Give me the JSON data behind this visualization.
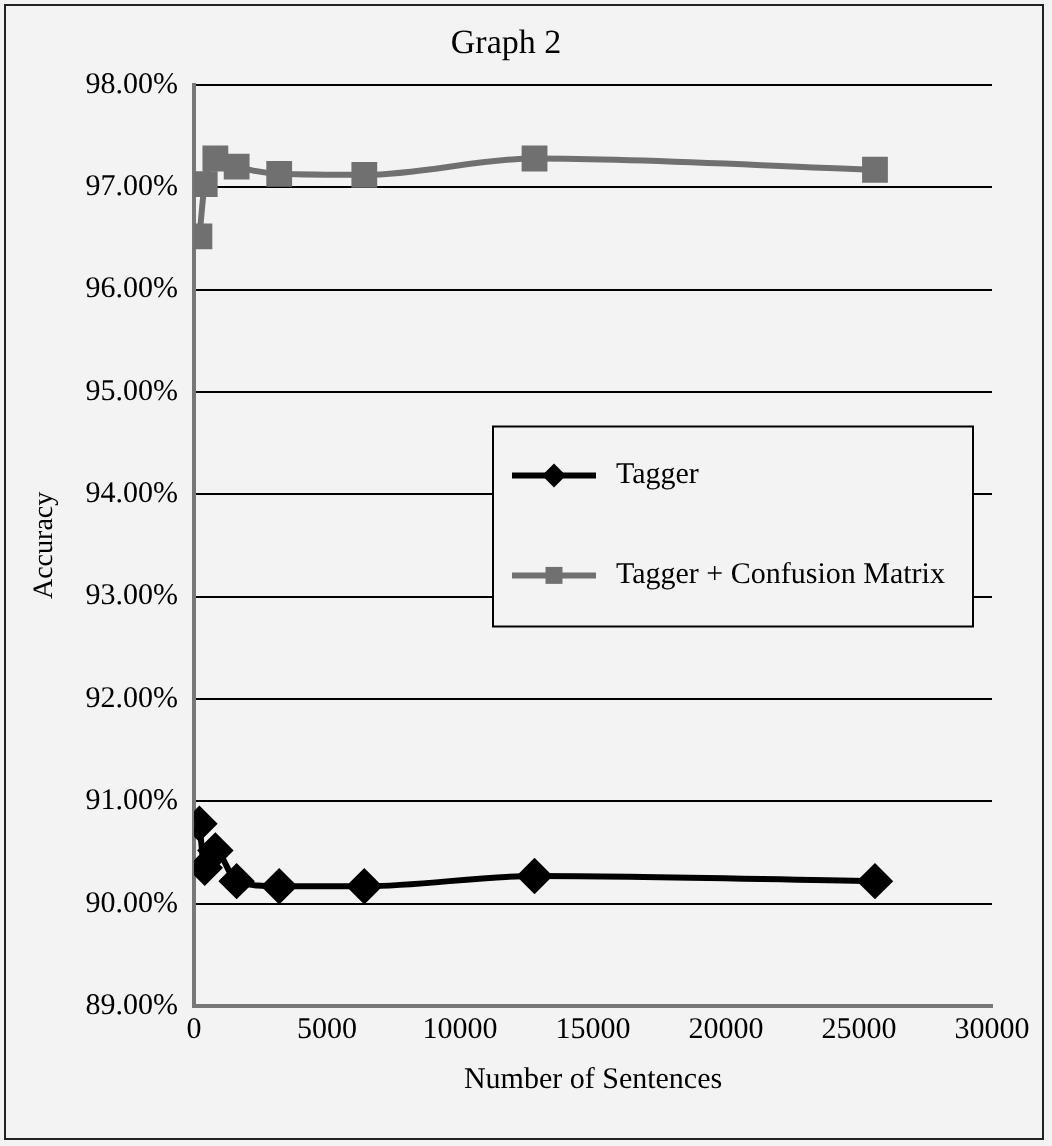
{
  "chart_data": {
    "type": "line",
    "title": "Graph 2",
    "xlabel": "Number of Sentences",
    "ylabel": "Accuracy",
    "x": [
      200,
      400,
      800,
      1600,
      3200,
      6400,
      12800,
      25600
    ],
    "series": [
      {
        "name": "Tagger",
        "color": "#000000",
        "marker": "diamond",
        "values": [
          90.78,
          90.35,
          90.52,
          90.22,
          90.17,
          90.17,
          90.27,
          90.22
        ]
      },
      {
        "name": "Tagger + Confusion Matrix",
        "color": "#707070",
        "marker": "square",
        "values": [
          96.52,
          97.03,
          97.28,
          97.2,
          97.13,
          97.12,
          97.28,
          97.17
        ]
      }
    ],
    "xlim": [
      0,
      30000
    ],
    "xticks": [
      0,
      5000,
      10000,
      15000,
      20000,
      25000,
      30000
    ],
    "ylim": [
      89,
      98
    ],
    "yticks": [
      {
        "value": 89,
        "label": "89.00%"
      },
      {
        "value": 90,
        "label": "90.00%"
      },
      {
        "value": 91,
        "label": "91.00%"
      },
      {
        "value": 92,
        "label": "92.00%"
      },
      {
        "value": 93,
        "label": "93.00%"
      },
      {
        "value": 94,
        "label": "94.00%"
      },
      {
        "value": 95,
        "label": "95.00%"
      },
      {
        "value": 96,
        "label": "96.00%"
      },
      {
        "value": 97,
        "label": "97.00%"
      },
      {
        "value": 98,
        "label": "98.00%"
      }
    ],
    "grid": "y",
    "legend": "right"
  }
}
